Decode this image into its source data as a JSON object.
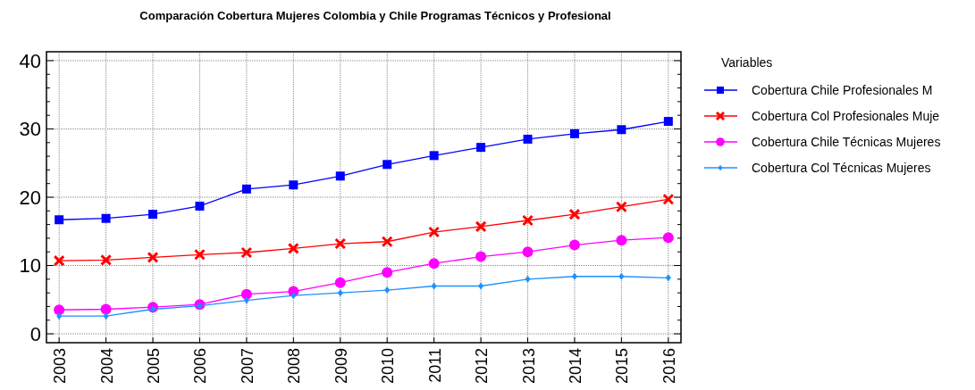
{
  "chart_data": {
    "type": "line",
    "title": "Comparación Cobertura Mujeres Colombia y Chile Programas Técnicos y Profesional",
    "legend_title": "Variables",
    "legend": "right",
    "categories": [
      "2003",
      "2004",
      "2005",
      "2006",
      "2007",
      "2008",
      "2009",
      "2010",
      "2011",
      "2012",
      "2013",
      "2014",
      "2015",
      "2016"
    ],
    "ylim": [
      -1.3,
      41.3
    ],
    "yticks": [
      0,
      {
        "value": 2,
        "label": null
      },
      {
        "value": 4,
        "label": null
      },
      {
        "value": 6,
        "label": null
      },
      {
        "value": 8,
        "label": null
      },
      10,
      {
        "value": 12,
        "label": null
      },
      {
        "value": 14,
        "label": null
      },
      {
        "value": 16,
        "label": null
      },
      {
        "value": 18,
        "label": null
      },
      20,
      {
        "value": 22,
        "label": null
      },
      {
        "value": 24,
        "label": null
      },
      {
        "value": 26,
        "label": null
      },
      {
        "value": 28,
        "label": null
      },
      30,
      {
        "value": 32,
        "label": null
      },
      {
        "value": 34,
        "label": null
      },
      {
        "value": 36,
        "label": null
      },
      {
        "value": 38,
        "label": null
      },
      40
    ],
    "grid": true,
    "line_style": "solid",
    "series": [
      {
        "name": "Cobertura Chile  Profesionales M",
        "color": "#0000ff",
        "marker": "square",
        "values": [
          16.7,
          16.9,
          17.5,
          18.7,
          21.2,
          21.8,
          23.1,
          24.8,
          26.1,
          27.3,
          28.5,
          29.3,
          29.9,
          31.1
        ]
      },
      {
        "name": "Cobertura Col Profesionales Muje",
        "color": "#ff0000",
        "marker": "cross",
        "values": [
          10.7,
          10.8,
          11.2,
          11.6,
          11.9,
          12.5,
          13.2,
          13.5,
          14.9,
          15.7,
          16.6,
          17.5,
          18.6,
          19.7
        ]
      },
      {
        "name": "Cobertura Chile Técnicas Mujeres",
        "color": "#ff00ff",
        "marker": "circle",
        "values": [
          3.5,
          3.6,
          3.9,
          4.3,
          5.8,
          6.2,
          7.5,
          9.0,
          10.3,
          11.3,
          12.0,
          13.0,
          13.7,
          14.1
        ]
      },
      {
        "name": "Cobertura Col Técnicas Mujeres",
        "color": "#1e90ff",
        "marker": "diamond",
        "values": [
          2.6,
          2.6,
          3.6,
          4.1,
          4.9,
          5.6,
          6.0,
          6.4,
          7.0,
          7.0,
          8.0,
          8.4,
          8.4,
          8.2
        ]
      }
    ]
  }
}
